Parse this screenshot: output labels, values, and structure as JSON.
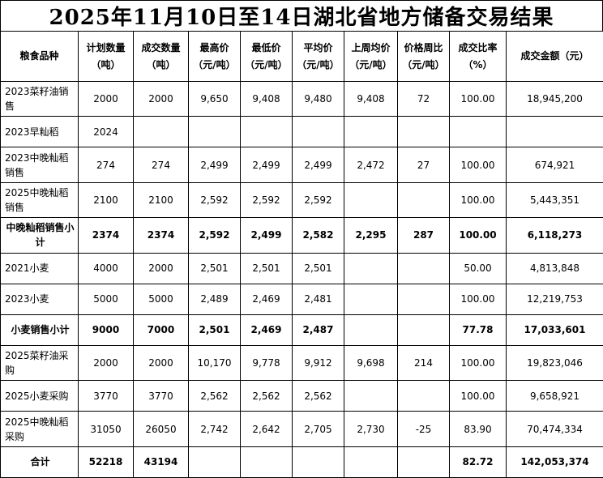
{
  "title": "2025年11月10日至14日湖北省地方储备交易结果",
  "table": {
    "headers": [
      {
        "label": "粮食品种"
      },
      {
        "label": "计划数量\n（吨）"
      },
      {
        "label": "成交数量\n（吨）"
      },
      {
        "label": "最高价\n（元/吨）"
      },
      {
        "label": "最低价\n（元/吨）"
      },
      {
        "label": "平均价\n（元/吨）"
      },
      {
        "label": "上周均价\n（元/吨）"
      },
      {
        "label": "价格周比\n（元/吨）"
      },
      {
        "label": "成交比率\n（%）"
      },
      {
        "label": "成交金额（元）"
      }
    ],
    "rows": [
      {
        "name": "2023菜籽油销售",
        "bold": false,
        "values": [
          "2000",
          "2000",
          "9,650",
          "9,408",
          "9,480",
          "9,408",
          "72",
          "100.00",
          "18,945,200"
        ]
      },
      {
        "name": "2023早籼稻",
        "bold": false,
        "values": [
          "2024",
          "",
          "",
          "",
          "",
          "",
          "",
          "",
          ""
        ]
      },
      {
        "name": "2023中晚籼稻销售",
        "bold": false,
        "values": [
          "274",
          "274",
          "2,499",
          "2,499",
          "2,499",
          "2,472",
          "27",
          "100.00",
          "674,921"
        ]
      },
      {
        "name": "2025中晚籼稻销售",
        "bold": false,
        "values": [
          "2100",
          "2100",
          "2,592",
          "2,592",
          "2,592",
          "",
          "",
          "100.00",
          "5,443,351"
        ]
      },
      {
        "name": "中晚籼稻销售小计",
        "bold": true,
        "values": [
          "2374",
          "2374",
          "2,592",
          "2,499",
          "2,582",
          "2,295",
          "287",
          "100.00",
          "6,118,273"
        ]
      },
      {
        "name": "2021小麦",
        "bold": false,
        "values": [
          "4000",
          "2000",
          "2,501",
          "2,501",
          "2,501",
          "",
          "",
          "50.00",
          "4,813,848"
        ]
      },
      {
        "name": "2023小麦",
        "bold": false,
        "values": [
          "5000",
          "5000",
          "2,489",
          "2,469",
          "2,481",
          "",
          "",
          "100.00",
          "12,219,753"
        ]
      },
      {
        "name": "小麦销售小计",
        "bold": true,
        "values": [
          "9000",
          "7000",
          "2,501",
          "2,469",
          "2,487",
          "",
          "",
          "77.78",
          "17,033,601"
        ]
      },
      {
        "name": "2025菜籽油采购",
        "bold": false,
        "values": [
          "2000",
          "2000",
          "10,170",
          "9,778",
          "9,912",
          "9,698",
          "214",
          "100.00",
          "19,823,046"
        ]
      },
      {
        "name": "2025小麦采购",
        "bold": false,
        "values": [
          "3770",
          "3770",
          "2,562",
          "2,562",
          "2,562",
          "",
          "",
          "100.00",
          "9,658,921"
        ]
      },
      {
        "name": "2025中晚籼稻采购",
        "bold": false,
        "values": [
          "31050",
          "26050",
          "2,742",
          "2,642",
          "2,705",
          "2,730",
          "-25",
          "83.90",
          "70,474,334"
        ]
      },
      {
        "name": "合计",
        "bold": true,
        "values": [
          "52218",
          "43194",
          "",
          "",
          "",
          "",
          "",
          "82.72",
          "142,053,374"
        ]
      }
    ]
  }
}
